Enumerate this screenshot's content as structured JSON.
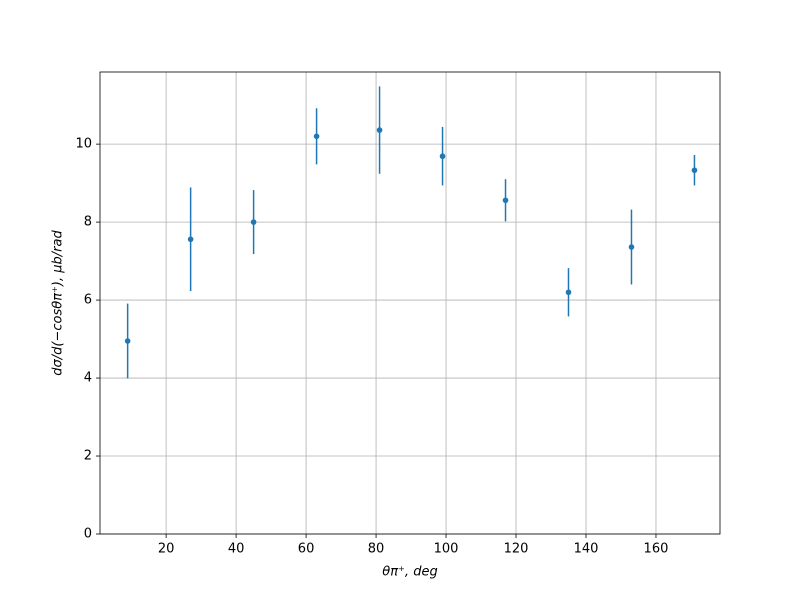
{
  "chart_data": {
    "type": "errorbar",
    "xlabel": "θπ⁺, deg",
    "ylabel": "dσ/d(−cosθπ⁺), μb/rad",
    "x": [
      9,
      27,
      45,
      63,
      81,
      99,
      117,
      135,
      153,
      171
    ],
    "series": [
      {
        "color": "#1f77b4",
        "values": [
          4.95,
          7.56,
          8.0,
          10.2,
          10.36,
          9.69,
          8.56,
          6.2,
          7.36,
          9.33
        ],
        "errors": [
          0.96,
          1.33,
          0.82,
          0.72,
          1.12,
          0.75,
          0.54,
          0.62,
          0.96,
          0.39
        ]
      }
    ],
    "xlim": [
      1.1,
      178.3
    ],
    "ylim": [
      0,
      11.85
    ],
    "xticks": [
      20,
      40,
      60,
      80,
      100,
      120,
      140,
      160
    ],
    "yticks": [
      0,
      2,
      4,
      6,
      8,
      10
    ],
    "grid": true
  }
}
